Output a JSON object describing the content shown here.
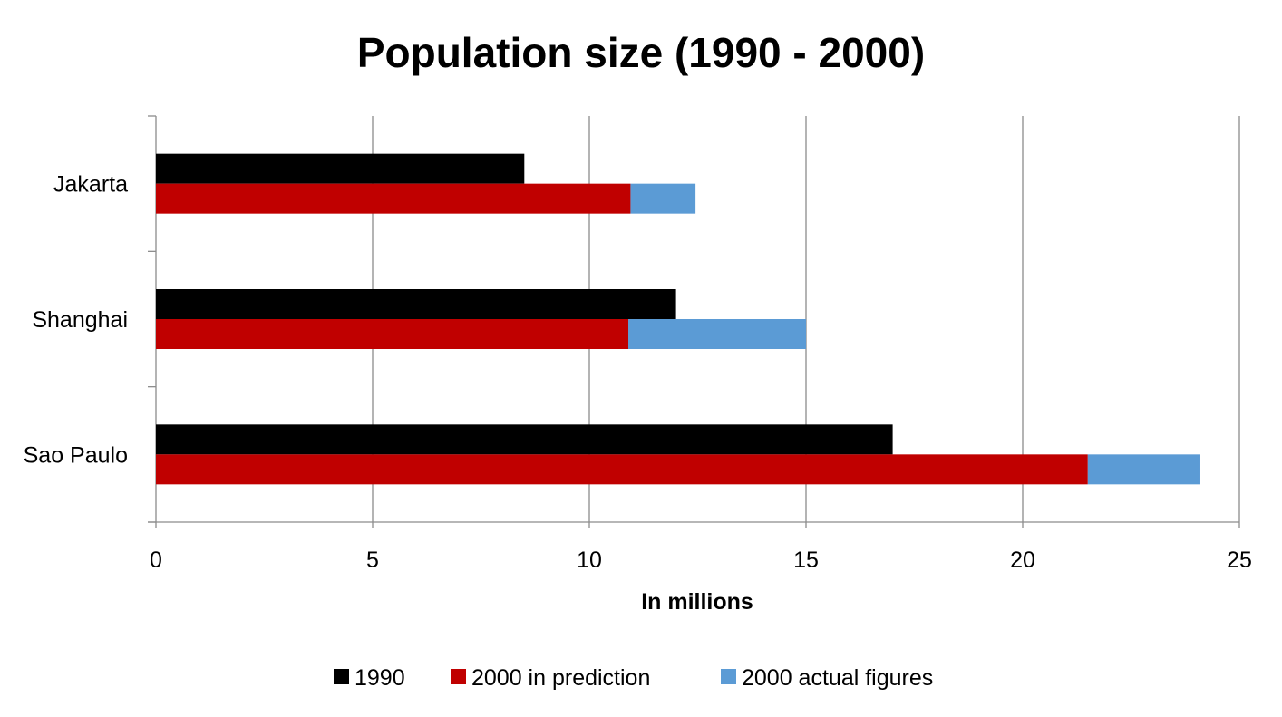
{
  "chart_data": {
    "type": "bar",
    "orientation": "horizontal",
    "stacked_note": "2000 actual figures segment extends from the 2000 prediction bar to the actual total",
    "title": "Population size (1990 - 2000)",
    "xlabel": "In millions",
    "ylabel": "",
    "xlim": [
      0,
      25
    ],
    "x_ticks": [
      0,
      5,
      10,
      15,
      20,
      25
    ],
    "grid": true,
    "legend_position": "bottom",
    "categories": [
      "Jakarta",
      "Shanghai",
      "Sao Paulo"
    ],
    "series": [
      {
        "name": "1990",
        "color": "#000000",
        "values": [
          8.5,
          12,
          17
        ]
      },
      {
        "name": "2000 in prediction",
        "color": "#c00000",
        "values": [
          10.95,
          10.9,
          21.5
        ]
      },
      {
        "name": "2000 actual figures",
        "color": "#5b9bd5",
        "values": [
          12.45,
          15,
          24.1
        ]
      }
    ]
  }
}
